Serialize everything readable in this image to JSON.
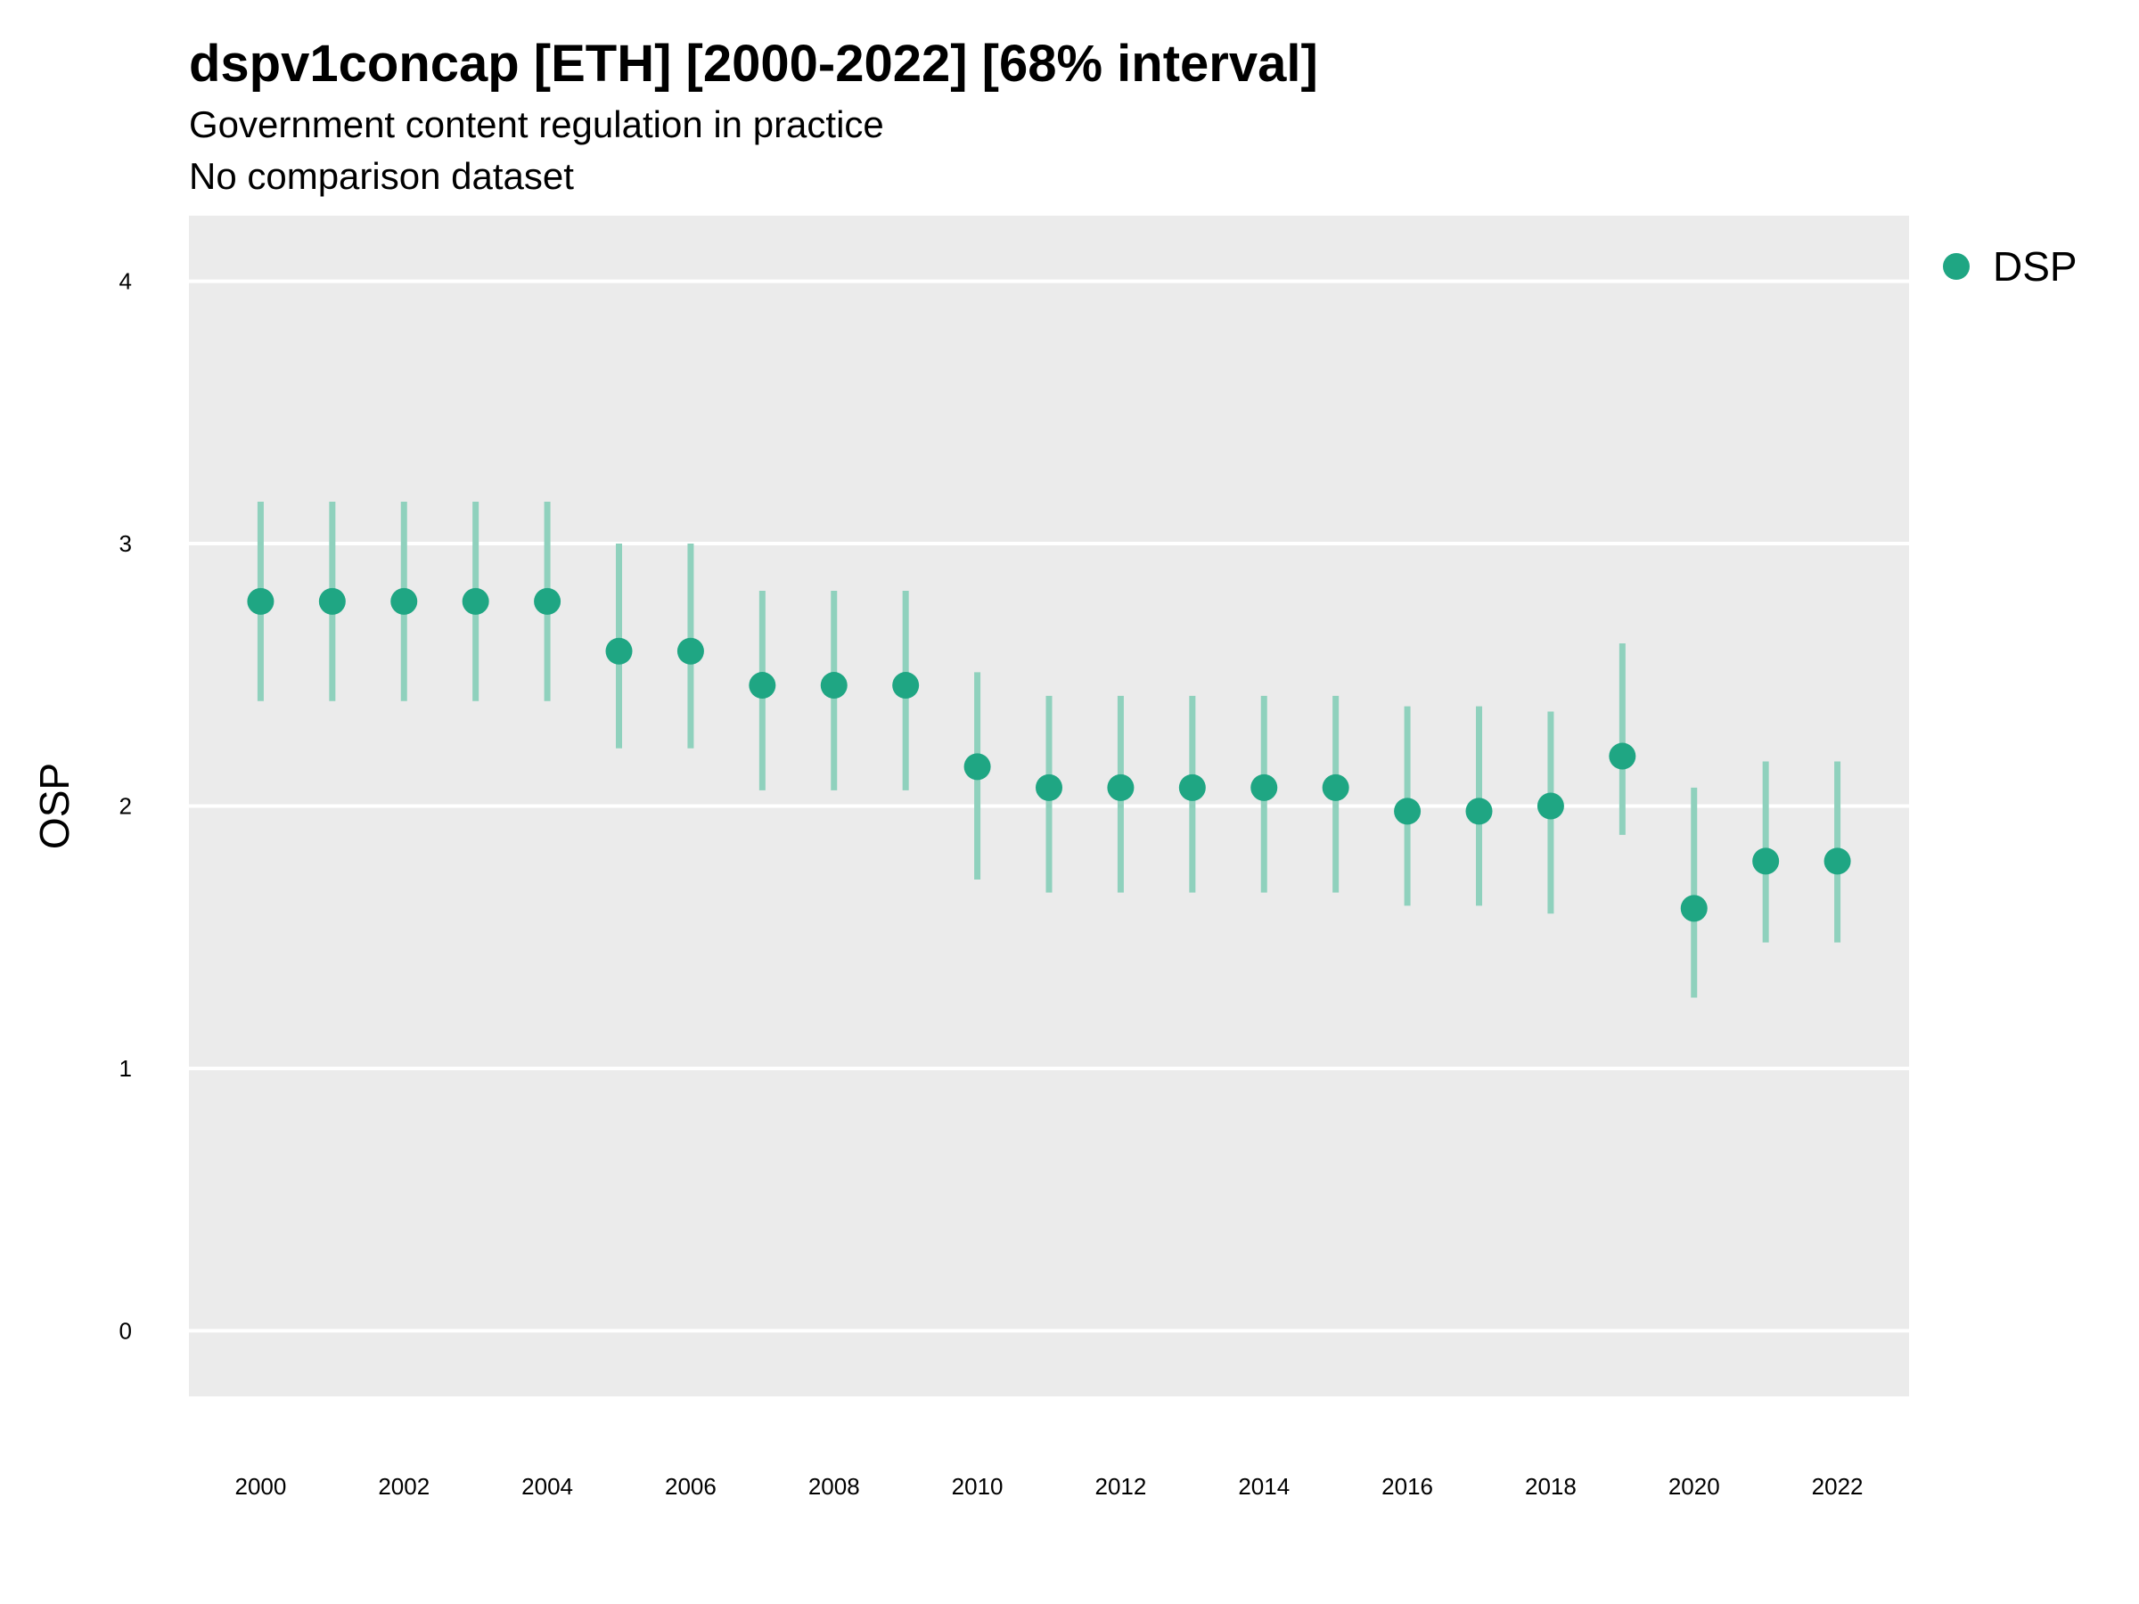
{
  "title": "dspv1concap [ETH] [2000-2022] [68% interval]",
  "subtitle": "Government content regulation in practice",
  "caption": "No comparison dataset",
  "colors": {
    "panel_bg": "#EBEBEB",
    "grid": "#FFFFFF",
    "point": "#1FA683",
    "interval": "#8FD1BD"
  },
  "chart_data": {
    "type": "scatter",
    "ylabel": "OSP",
    "xlabel": "",
    "ylim": [
      -0.25,
      4.25
    ],
    "xlim": [
      1999,
      2023
    ],
    "yticks": [
      0,
      1,
      2,
      3,
      4
    ],
    "xticks": [
      2000,
      2002,
      2004,
      2006,
      2008,
      2010,
      2012,
      2014,
      2016,
      2018,
      2020,
      2022
    ],
    "grid": true,
    "legend_position": "top-right",
    "interval": "68%",
    "series": [
      {
        "name": "DSP",
        "x": [
          2000,
          2001,
          2002,
          2003,
          2004,
          2005,
          2006,
          2007,
          2008,
          2009,
          2010,
          2011,
          2012,
          2013,
          2014,
          2015,
          2016,
          2017,
          2018,
          2019,
          2020,
          2021,
          2022
        ],
        "y": [
          2.78,
          2.78,
          2.78,
          2.78,
          2.78,
          2.59,
          2.59,
          2.46,
          2.46,
          2.46,
          2.15,
          2.07,
          2.07,
          2.07,
          2.07,
          2.07,
          1.98,
          1.98,
          2.0,
          2.19,
          1.61,
          1.79,
          1.79
        ],
        "lower": [
          2.4,
          2.4,
          2.4,
          2.4,
          2.4,
          2.22,
          2.22,
          2.06,
          2.06,
          2.06,
          1.72,
          1.67,
          1.67,
          1.67,
          1.67,
          1.67,
          1.62,
          1.62,
          1.59,
          1.89,
          1.27,
          1.48,
          1.48
        ],
        "upper": [
          3.16,
          3.16,
          3.16,
          3.16,
          3.16,
          3.0,
          3.0,
          2.82,
          2.82,
          2.82,
          2.51,
          2.42,
          2.42,
          2.42,
          2.42,
          2.42,
          2.38,
          2.38,
          2.36,
          2.62,
          2.07,
          2.17,
          2.17
        ]
      }
    ]
  }
}
